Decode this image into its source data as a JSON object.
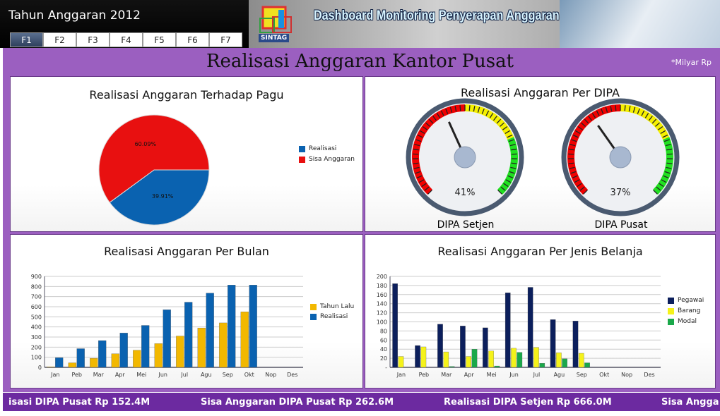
{
  "header": {
    "app_title": "Tahun Anggaran 2012",
    "tabs": [
      "F1",
      "F2",
      "F3",
      "F4",
      "F5",
      "F6",
      "F7"
    ],
    "active_tab": "F1",
    "banner_title": "Dashboard Monitoring Penyerapan Anggaran",
    "logo_text": "SINTAG"
  },
  "page": {
    "title": "Realisasi Anggaran Kantor Pusat",
    "unit": "*Milyar Rp"
  },
  "colors": {
    "purple": "#9b5fc0",
    "footer": "#6c2aa0",
    "realisasi": "#0a62b0",
    "sisa": "#e81010",
    "tahun_lalu": "#f2b800",
    "pegawai": "#0c1f5c",
    "barang": "#f5f21a",
    "modal": "#1aa84a"
  },
  "pie": {
    "title": "Realisasi Anggaran Terhadap Pagu",
    "slices": [
      {
        "label": "Realisasi",
        "value": 39.91,
        "text": "39.91%"
      },
      {
        "label": "Sisa Anggaran",
        "value": 60.09,
        "text": "60.09%"
      }
    ]
  },
  "gauges": {
    "title": "Realisasi  Anggaran Per  DIPA",
    "items": [
      {
        "label": "DIPA Setjen",
        "value": 41,
        "text": "41%"
      },
      {
        "label": "DIPA Pusat",
        "value": 37,
        "text": "37%"
      }
    ]
  },
  "chart_data": [
    {
      "type": "bar",
      "title": "Realisasi Anggaran Per Bulan",
      "categories": [
        "Jan",
        "Peb",
        "Mar",
        "Apr",
        "Mei",
        "Jun",
        "Jul",
        "Agu",
        "Sep",
        "Okt",
        "Nop",
        "Des"
      ],
      "ylim": [
        0,
        900
      ],
      "yticks": [
        "0",
        "100",
        "200",
        "300",
        "400",
        "500",
        "600",
        "700",
        "800",
        "900"
      ],
      "series": [
        {
          "name": "Tahun Lalu",
          "values": [
            5,
            45,
            90,
            135,
            170,
            235,
            310,
            390,
            440,
            550,
            null,
            null
          ]
        },
        {
          "name": "Realisasi",
          "values": [
            95,
            185,
            265,
            340,
            415,
            570,
            645,
            735,
            815,
            815,
            null,
            null
          ]
        }
      ]
    },
    {
      "type": "bar",
      "title": "Realisasi Anggaran Per Jenis Belanja",
      "categories": [
        "Jan",
        "Peb",
        "Mar",
        "Apr",
        "Mei",
        "Jun",
        "Jul",
        "Agu",
        "Sep",
        "Okt",
        "Nop",
        "Des"
      ],
      "ylim": [
        0,
        200
      ],
      "yticks": [
        "-",
        "20",
        "40",
        "60",
        "80",
        "100",
        "120",
        "140",
        "160",
        "180",
        "200"
      ],
      "series": [
        {
          "name": "Pegawai",
          "values": [
            184,
            48,
            95,
            91,
            87,
            164,
            176,
            105,
            102,
            null,
            null,
            null
          ]
        },
        {
          "name": "Barang",
          "values": [
            24,
            45,
            34,
            24,
            36,
            42,
            44,
            32,
            31,
            null,
            null,
            null
          ]
        },
        {
          "name": "Modal",
          "values": [
            0,
            0,
            2,
            40,
            3,
            33,
            9,
            19,
            10,
            null,
            null,
            null
          ]
        }
      ]
    }
  ],
  "ticker": [
    "isasi DIPA Pusat Rp 152.4M",
    "Sisa Anggaran DIPA Pusat Rp 262.6M",
    "Realisasi DIPA Setjen Rp 666.0M",
    "Sisa Angga"
  ]
}
